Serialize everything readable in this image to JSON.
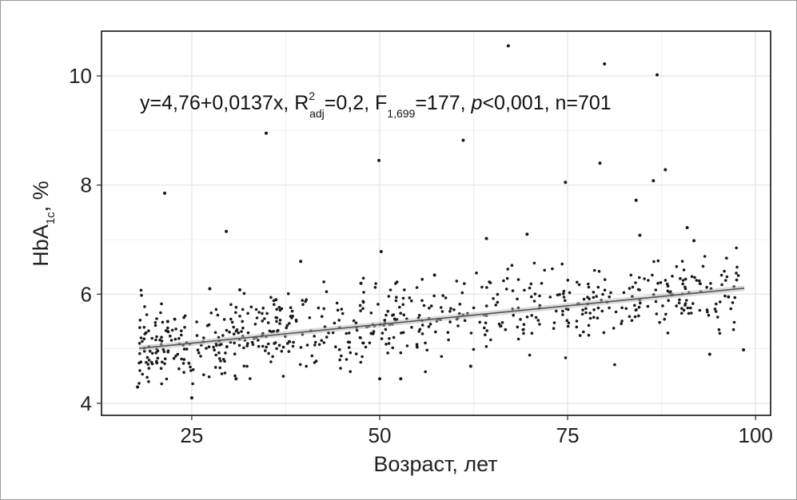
{
  "chart_data": {
    "type": "scatter",
    "title": "",
    "xlabel": "Возраст, лет",
    "ylabel": {
      "main": "HbA",
      "sub": "1c",
      "tail": ", %"
    },
    "xlim": [
      13,
      102
    ],
    "ylim": [
      3.78,
      10.82
    ],
    "xticks": [
      25,
      50,
      75,
      100
    ],
    "yticks": [
      4,
      6,
      8,
      10
    ],
    "grid": true,
    "legend": "none",
    "colors": {
      "points": "#1a1a1a",
      "line": "#555555",
      "ci_band": "#bdbdbd",
      "grid": "#ebebeb"
    },
    "annotation": {
      "lead": "y=4,76+0,0137x, R",
      "r2_sup": "2",
      "r2_sub": "adj",
      "mid1": "=0,2, F",
      "f_sub": "1,699",
      "mid2": "=177, ",
      "p_italic": "p",
      "tail": "<0,001, n=701"
    },
    "regression": {
      "intercept": 4.76,
      "slope": 0.0137,
      "ci_halfwidth": 0.05
    },
    "outliers": [
      {
        "x": 17.8,
        "y": 4.3
      },
      {
        "x": 21.4,
        "y": 7.85
      },
      {
        "x": 21.8,
        "y": 5.5
      },
      {
        "x": 25.0,
        "y": 4.1
      },
      {
        "x": 29.6,
        "y": 7.15
      },
      {
        "x": 27.4,
        "y": 6.1
      },
      {
        "x": 31.4,
        "y": 6.08
      },
      {
        "x": 34.9,
        "y": 8.95
      },
      {
        "x": 39.5,
        "y": 6.6
      },
      {
        "x": 49.9,
        "y": 8.45
      },
      {
        "x": 50.2,
        "y": 6.78
      },
      {
        "x": 47.5,
        "y": 6.2
      },
      {
        "x": 50.0,
        "y": 4.45
      },
      {
        "x": 52.8,
        "y": 4.45
      },
      {
        "x": 61.1,
        "y": 8.82
      },
      {
        "x": 64.2,
        "y": 7.02
      },
      {
        "x": 67.1,
        "y": 10.55
      },
      {
        "x": 69.6,
        "y": 7.1
      },
      {
        "x": 74.7,
        "y": 8.05
      },
      {
        "x": 79.3,
        "y": 8.4
      },
      {
        "x": 79.9,
        "y": 10.22
      },
      {
        "x": 84.1,
        "y": 7.72
      },
      {
        "x": 84.6,
        "y": 7.08
      },
      {
        "x": 86.4,
        "y": 8.08
      },
      {
        "x": 86.9,
        "y": 10.02
      },
      {
        "x": 88.0,
        "y": 8.28
      },
      {
        "x": 90.9,
        "y": 7.22
      },
      {
        "x": 91.8,
        "y": 6.98
      },
      {
        "x": 62.1,
        "y": 4.68
      },
      {
        "x": 98.4,
        "y": 4.98
      },
      {
        "x": 93.9,
        "y": 4.9
      },
      {
        "x": 96.4,
        "y": 5.95
      },
      {
        "x": 30.9,
        "y": 4.45
      },
      {
        "x": 36.2,
        "y": 5.9
      },
      {
        "x": 57.3,
        "y": 6.35
      }
    ],
    "cluster": {
      "n": 666,
      "x_from": 18,
      "x_to": 98,
      "spread": 0.36,
      "seed": 701
    }
  }
}
